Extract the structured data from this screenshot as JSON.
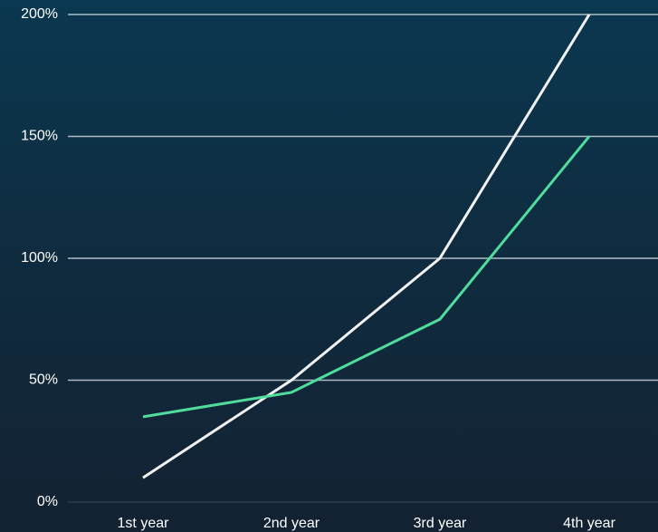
{
  "chart_data": {
    "type": "line",
    "title": "",
    "xlabel": "",
    "ylabel": "",
    "categories": [
      "1st year",
      "2nd year",
      "3rd year",
      "4th year"
    ],
    "ylim": [
      0,
      200
    ],
    "yticks": [
      0,
      50,
      100,
      150,
      200
    ],
    "ytick_labels": [
      "0%",
      "50%",
      "100%",
      "150%",
      "200%"
    ],
    "grid": true,
    "legend": "none",
    "series": [
      {
        "values": [
          10,
          50,
          100,
          200
        ],
        "color": "#f2f2f2"
      },
      {
        "values": [
          35,
          45,
          75,
          150
        ],
        "color": "#4fdc9c"
      }
    ],
    "colors": {
      "grid": "#c9d3da",
      "background_top": "#0a3850",
      "background_bottom": "#132232",
      "text": "#ffffff"
    }
  }
}
